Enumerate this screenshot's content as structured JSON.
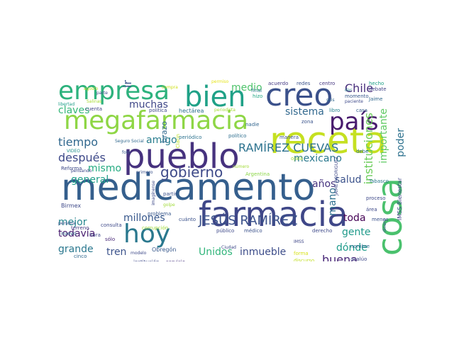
{
  "wordcloud": {
    "words": [
      {
        "text": "medicamento",
        "color": "#355f8d"
      },
      {
        "text": "megafarmacia",
        "color": "#8ed645"
      },
      {
        "text": "receta",
        "color": "#c5e021"
      },
      {
        "text": "pueblo",
        "color": "#46327e"
      },
      {
        "text": "farmacia",
        "color": "#3f4788"
      },
      {
        "text": "creo",
        "color": "#3b518b"
      },
      {
        "text": "bien",
        "color": "#1fa187"
      },
      {
        "text": "empresa",
        "color": "#2db27d"
      },
      {
        "text": "cosa",
        "color": "#4ac16d"
      },
      {
        "text": "país",
        "color": "#481b6d"
      },
      {
        "text": "hoy",
        "color": "#2a788e"
      },
      {
        "text": "gobierno",
        "color": "#3e4a89"
      },
      {
        "text": "JESÚS RAMÍREZ",
        "color": "#3b528b"
      },
      {
        "text": "RAMÍREZ CUEVAS",
        "color": "#2c728e"
      },
      {
        "text": "Chile",
        "color": "#472d7b"
      },
      {
        "text": "medio",
        "color": "#4ec36b"
      },
      {
        "text": "muchas",
        "color": "#3f4788"
      },
      {
        "text": "claves",
        "color": "#35b779"
      },
      {
        "text": "tiempo",
        "color": "#31688e"
      },
      {
        "text": "después",
        "color": "#3e4989"
      },
      {
        "text": "general",
        "color": "#1f9e89"
      },
      {
        "text": "sistema",
        "color": "#31688e"
      },
      {
        "text": "instituciones",
        "color": "#6ccd5a"
      },
      {
        "text": "importante",
        "color": "#5ec962"
      },
      {
        "text": "poder",
        "color": "#2d718e"
      },
      {
        "text": "mexicano",
        "color": "#2a788e"
      },
      {
        "text": "salud",
        "color": "#3b528b"
      },
      {
        "text": "años",
        "color": "#46337f"
      },
      {
        "text": "gente",
        "color": "#1f9a8a"
      },
      {
        "text": "toda",
        "color": "#440154"
      },
      {
        "text": "dónde",
        "color": "#1e9b8a"
      },
      {
        "text": "buena",
        "color": "#482677"
      },
      {
        "text": "millones",
        "color": "#38588c"
      },
      {
        "text": "mejor",
        "color": "#25858e"
      },
      {
        "text": "todavía",
        "color": "#481c6e"
      },
      {
        "text": "grande",
        "color": "#2a778e"
      },
      {
        "text": "tren",
        "color": "#3b528b"
      },
      {
        "text": "Unidos",
        "color": "#31b57b"
      },
      {
        "text": "inmueble",
        "color": "#3d4d8a"
      },
      {
        "text": "amigo",
        "color": "#287d8e"
      },
      {
        "text": "mismo",
        "color": "#25ab82"
      },
      {
        "text": "mano",
        "color": "#2e6f8e"
      },
      {
        "text": "brazo",
        "color": "#31688e"
      },
      {
        "text": "ir",
        "color": "#3a548c"
      },
      {
        "text": "compra",
        "color": "#d0e11c"
      },
      {
        "text": "permiso",
        "color": "#e5e419"
      },
      {
        "text": "acuerdo",
        "color": "#443983"
      },
      {
        "text": "redes",
        "color": "#3b528b"
      },
      {
        "text": "centro",
        "color": "#453781"
      },
      {
        "text": "hecho",
        "color": "#1fa187"
      },
      {
        "text": "debate",
        "color": "#414487"
      },
      {
        "text": "momento",
        "color": "#38588c"
      },
      {
        "text": "Jaime",
        "color": "#31688e"
      },
      {
        "text": "final",
        "color": "#2a788e"
      },
      {
        "text": "hizo",
        "color": "#22a785"
      },
      {
        "text": "dar",
        "color": "#277f8e"
      },
      {
        "text": "libro",
        "color": "#26828e"
      },
      {
        "text": "casa",
        "color": "#355f8d"
      },
      {
        "text": "política",
        "color": "#3e4989"
      },
      {
        "text": "hectárea",
        "color": "#2d708e"
      },
      {
        "text": "periodista",
        "color": "#a5db36"
      },
      {
        "text": "cuenta",
        "color": "#414487"
      },
      {
        "text": "libertad",
        "color": "#1f9e89"
      },
      {
        "text": "Salinas",
        "color": "#a8db34"
      },
      {
        "text": "nadie",
        "color": "#32658e"
      },
      {
        "text": "periódico",
        "color": "#2c728e"
      },
      {
        "text": "político",
        "color": "#2e6e8e"
      },
      {
        "text": "Clarín",
        "color": "#bddf26"
      },
      {
        "text": "manera",
        "color": "#3b528b"
      },
      {
        "text": "zona",
        "color": "#3a548c"
      },
      {
        "text": "debe",
        "color": "#2e6f8e"
      },
      {
        "text": "paciente",
        "color": "#3e4989"
      },
      {
        "text": "seis",
        "color": "#31688e"
      },
      {
        "text": "Reforma",
        "color": "#3e4a89"
      },
      {
        "text": "VIDEO",
        "color": "#21918c"
      },
      {
        "text": "foto",
        "color": "#38588c"
      },
      {
        "text": "primero",
        "color": "#3b528b"
      },
      {
        "text": "número",
        "color": "#a2da37"
      },
      {
        "text": "Argentina",
        "color": "#8bd646"
      },
      {
        "text": "JAIME RODRÍGUEZ",
        "color": "#3e4989"
      },
      {
        "text": "IMSS Bienestar",
        "color": "#3f4788"
      },
      {
        "text": "Tabasco",
        "color": "#2a768e"
      },
      {
        "text": "partir",
        "color": "#3b518b"
      },
      {
        "text": "golpe",
        "color": "#a0da39"
      },
      {
        "text": "imagínense",
        "color": "#3e4989"
      },
      {
        "text": "Birmex",
        "color": "#3e4989"
      },
      {
        "text": "problema",
        "color": "#38588c"
      },
      {
        "text": "corrupción",
        "color": "#a0da39"
      },
      {
        "text": "cuánto",
        "color": "#3b528b"
      },
      {
        "text": "terreno",
        "color": "#443983"
      },
      {
        "text": "nuevo",
        "color": "#31688e"
      },
      {
        "text": "hora",
        "color": "#3f4788"
      },
      {
        "text": "sólo",
        "color": "#482878"
      },
      {
        "text": "persona",
        "color": "#3b528b"
      },
      {
        "text": "cinco",
        "color": "#31688e"
      },
      {
        "text": "modelo",
        "color": "#3e4989"
      },
      {
        "text": "Obregón",
        "color": "#38588c"
      },
      {
        "text": "institución",
        "color": "#3e4989"
      },
      {
        "text": "servicio",
        "color": "#46327e"
      },
      {
        "text": "público",
        "color": "#3e4989"
      },
      {
        "text": "médico",
        "color": "#3b528b"
      },
      {
        "text": "derecho",
        "color": "#3e4989"
      },
      {
        "text": "IMSS",
        "color": "#3f4788"
      },
      {
        "text": "nombre",
        "color": "#31688e"
      },
      {
        "text": "forma",
        "color": "#d8e219"
      },
      {
        "text": "discurso",
        "color": "#c2df23"
      },
      {
        "text": "avalúo",
        "color": "#3e4989"
      },
      {
        "text": "menos",
        "color": "#3b528b"
      },
      {
        "text": "área",
        "color": "#3e4989"
      },
      {
        "text": "proceso",
        "color": "#3e4989"
      },
      {
        "text": "dinero",
        "color": "#3b528b"
      },
      {
        "text": "Ciudad",
        "color": "#3e4989"
      },
      {
        "text": "consulta",
        "color": "#3e4989"
      },
      {
        "text": "Seguro Social",
        "color": "#31688e"
      },
      {
        "text": "parte",
        "color": "#3e4989"
      },
      {
        "text": "agosto",
        "color": "#bddf26"
      },
      {
        "text": "ojalá",
        "color": "#a0da39"
      },
      {
        "text": "pensando",
        "color": "#3e4989"
      }
    ]
  }
}
